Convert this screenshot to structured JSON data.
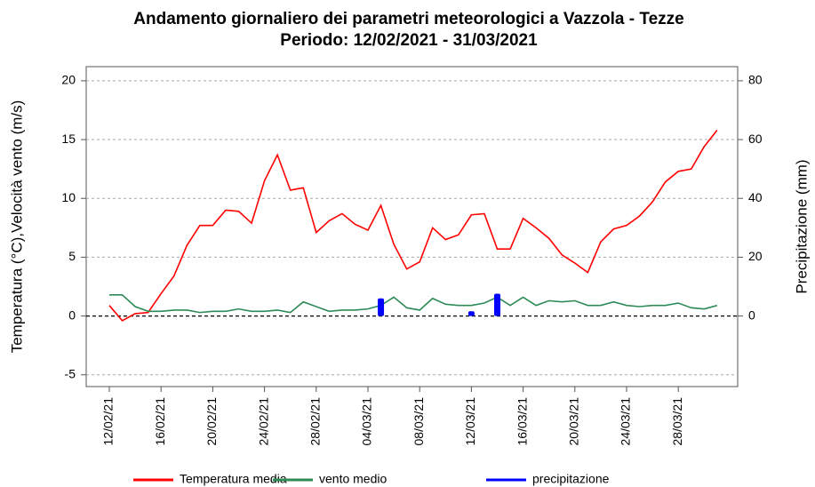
{
  "chart_data": {
    "type": "line",
    "title": "Andamento giornaliero dei parametri meteorologici a Vazzola - Tezze",
    "subtitle": "Periodo:  12/02/2021 -  31/03/2021",
    "ylabel": "Temperatura (°C),Velocità vento (m/s)",
    "y2label": "Precipitazione (mm)",
    "categories": [
      "12/02/21",
      null,
      null,
      null,
      "16/02/21",
      null,
      null,
      null,
      "20/02/21",
      null,
      null,
      null,
      "24/02/21",
      null,
      null,
      null,
      "28/02/21",
      null,
      null,
      null,
      "04/03/21",
      null,
      null,
      null,
      "08/03/21",
      null,
      null,
      null,
      "12/03/21",
      null,
      null,
      null,
      "16/03/21",
      null,
      null,
      null,
      "20/03/21",
      null,
      null,
      null,
      "24/03/21",
      null,
      null,
      null,
      "28/03/21",
      null,
      null,
      null
    ],
    "series": [
      {
        "name": "Temperatura media",
        "color": "#ff0000",
        "type": "line",
        "values": [
          0.9,
          -0.4,
          0.2,
          0.3,
          1.9,
          3.4,
          6.0,
          7.7,
          7.7,
          9.0,
          8.9,
          7.9,
          11.5,
          13.7,
          10.7,
          10.9,
          7.1,
          8.1,
          8.7,
          7.8,
          7.3,
          9.4,
          6.1,
          4.0,
          4.6,
          7.5,
          6.5,
          6.9,
          8.6,
          8.7,
          5.7,
          5.7,
          8.3,
          7.5,
          6.6,
          5.2,
          4.5,
          3.7,
          6.3,
          7.4,
          7.7,
          8.5,
          9.7,
          11.4,
          12.3,
          12.5,
          14.4,
          15.8
        ]
      },
      {
        "name": "vento medio",
        "color": "#2e8b57",
        "type": "line",
        "values": [
          1.8,
          1.8,
          0.8,
          0.4,
          0.4,
          0.5,
          0.5,
          0.3,
          0.4,
          0.4,
          0.6,
          0.4,
          0.4,
          0.5,
          0.3,
          1.2,
          0.8,
          0.4,
          0.5,
          0.5,
          0.6,
          0.9,
          1.6,
          0.7,
          0.5,
          1.5,
          1.0,
          0.9,
          0.9,
          1.1,
          1.6,
          0.9,
          1.6,
          0.9,
          1.3,
          1.2,
          1.3,
          0.9,
          0.9,
          1.2,
          0.9,
          0.8,
          0.9,
          0.9,
          1.1,
          0.7,
          0.6,
          0.9
        ]
      },
      {
        "name": "precipitazione",
        "color": "#0000ff",
        "type": "bar",
        "axis": "y2",
        "values": [
          0,
          0,
          0,
          0,
          0,
          0,
          0,
          0,
          0,
          0,
          0,
          0,
          0,
          0,
          0,
          0,
          0,
          0,
          0,
          0,
          0,
          6,
          0,
          0,
          0,
          0,
          0,
          0,
          1.6,
          0,
          7.6,
          0,
          0,
          0,
          0,
          0,
          0,
          0,
          0,
          0,
          0,
          0,
          0,
          0,
          0,
          0,
          0,
          0
        ]
      }
    ],
    "ylim": [
      -6,
      21.2
    ],
    "yticks": [
      -5,
      0,
      5,
      10,
      15,
      20
    ],
    "y2lim": [
      -24,
      84.8
    ],
    "y2ticks": [
      0,
      20,
      40,
      60,
      80
    ],
    "grid": true,
    "legend": "bottom"
  }
}
